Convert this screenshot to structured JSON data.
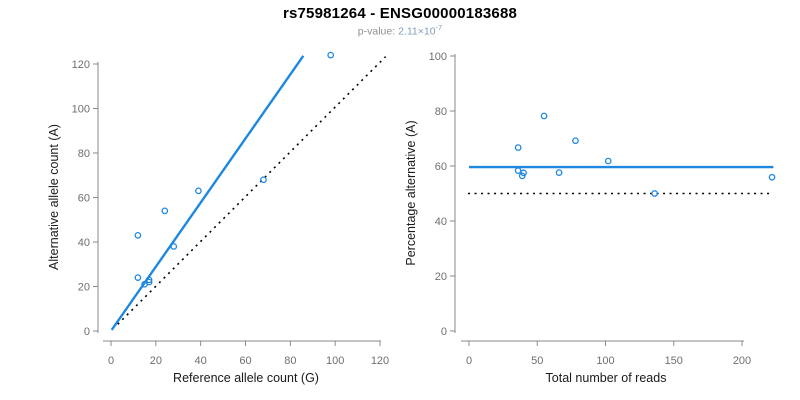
{
  "header": {
    "title": "rs75981264 - ENSG00000183688",
    "pvalue_label": "p-value: ",
    "pvalue_mantissa": "2.11×10",
    "pvalue_exponent": "-7"
  },
  "colors": {
    "accent_blue": "#1E87E0",
    "line_black": "#000000",
    "axis_gray": "#8a8a8a",
    "tick_label_gray": "#6f6f6f",
    "axis_title_color": "#1a1a1a",
    "subtitle_gray": "#8f8f8f",
    "pvalue_value_color": "#7f9db9"
  },
  "chart_data": [
    {
      "type": "scatter",
      "panel": "left",
      "xlabel": "Reference allele count (G)",
      "ylabel": "Alternative allele count (A)",
      "xlim": [
        0,
        124
      ],
      "ylim": [
        0,
        124
      ],
      "grid": false,
      "xticks": [
        0,
        20,
        40,
        60,
        80,
        100,
        120
      ],
      "yticks": [
        0,
        20,
        40,
        60,
        80,
        100,
        120
      ],
      "marker": "open-circle",
      "points": [
        [
          98,
          124
        ],
        [
          39,
          63
        ],
        [
          68,
          68
        ],
        [
          24,
          54
        ],
        [
          12,
          43
        ],
        [
          28,
          38
        ],
        [
          12,
          24
        ],
        [
          15,
          21
        ],
        [
          17,
          23
        ],
        [
          17,
          22
        ]
      ],
      "lines": [
        {
          "name": "regression-line",
          "color": "blue",
          "style": "solid",
          "from": [
            0.3,
            0.5
          ],
          "to": [
            85.8,
            123.7
          ]
        },
        {
          "name": "identity-line",
          "color": "black",
          "style": "dotted",
          "from": [
            3,
            3
          ],
          "to": [
            122.5,
            123.3
          ]
        }
      ]
    },
    {
      "type": "scatter",
      "panel": "right",
      "xlabel": "Total number of reads",
      "ylabel": "Percentage alternative (A)",
      "xlim": [
        0,
        224
      ],
      "ylim": [
        0,
        100
      ],
      "grid": false,
      "xticks": [
        0,
        50,
        100,
        150,
        200
      ],
      "yticks": [
        0,
        20,
        40,
        60,
        80,
        100
      ],
      "marker": "open-circle",
      "points": [
        [
          222,
          55.9
        ],
        [
          102,
          61.8
        ],
        [
          136,
          50
        ],
        [
          78,
          69.2
        ],
        [
          55,
          78.2
        ],
        [
          66,
          57.6
        ],
        [
          36,
          66.7
        ],
        [
          36,
          58.3
        ],
        [
          40,
          57.5
        ],
        [
          39,
          56.4
        ]
      ],
      "lines": [
        {
          "name": "mean-line",
          "color": "blue",
          "style": "solid",
          "from": [
            0,
            59.6
          ],
          "to": [
            223,
            59.6
          ]
        },
        {
          "name": "null-line",
          "color": "black",
          "style": "dotted",
          "from": [
            -0.7,
            50
          ],
          "to": [
            220.5,
            50
          ]
        }
      ]
    }
  ]
}
